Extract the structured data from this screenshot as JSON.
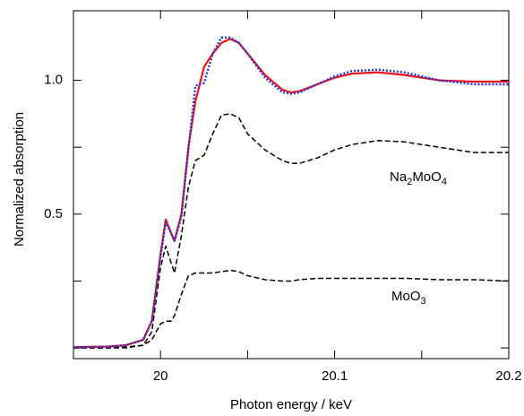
{
  "chart_data": {
    "type": "line",
    "xlabel": "Photon energy / keV",
    "ylabel": "Normalized absorption",
    "x": [
      19.95,
      19.97,
      19.98,
      19.99,
      19.995,
      20,
      20.003,
      20.006,
      20.008,
      20.012,
      20.016,
      20.02,
      20.025,
      20.03,
      20.035,
      20.04,
      20.045,
      20.05,
      20.06,
      20.07,
      20.075,
      20.08,
      20.09,
      20.1,
      20.11,
      20.125,
      20.14,
      20.16,
      20.18,
      20.2
    ],
    "series": [
      {
        "color": "#e8141c",
        "dash": "solid",
        "values": [
          0.003,
          0.005,
          0.01,
          0.03,
          0.1,
          0.35,
          0.48,
          0.43,
          0.4,
          0.5,
          0.75,
          0.92,
          1.05,
          1.1,
          1.14,
          1.155,
          1.14,
          1.1,
          1.02,
          0.965,
          0.955,
          0.96,
          0.985,
          1.01,
          1.025,
          1.03,
          1.02,
          1.0,
          0.995,
          0.995
        ]
      },
      {
        "color": "#2233dd",
        "dash": "dotted",
        "values": [
          0.003,
          0.005,
          0.01,
          0.03,
          0.1,
          0.34,
          0.47,
          0.43,
          0.4,
          0.49,
          0.74,
          0.98,
          0.99,
          1.1,
          1.16,
          1.16,
          1.14,
          1.1,
          1.01,
          0.955,
          0.95,
          0.955,
          0.985,
          1.015,
          1.035,
          1.04,
          1.03,
          1.0,
          0.985,
          0.985
        ]
      },
      {
        "color": "#000000",
        "dash": "dashed",
        "values": [
          0,
          0,
          0.003,
          0.01,
          0.06,
          0.3,
          0.38,
          0.32,
          0.28,
          0.42,
          0.6,
          0.7,
          0.72,
          0.8,
          0.87,
          0.875,
          0.86,
          0.8,
          0.74,
          0.7,
          0.69,
          0.69,
          0.71,
          0.74,
          0.76,
          0.775,
          0.77,
          0.75,
          0.73,
          0.73
        ]
      },
      {
        "color": "#000000",
        "dash": "dashed",
        "values": [
          0,
          0,
          0,
          0.01,
          0.03,
          0.09,
          0.1,
          0.1,
          0.12,
          0.2,
          0.27,
          0.28,
          0.28,
          0.28,
          0.285,
          0.29,
          0.285,
          0.27,
          0.255,
          0.25,
          0.25,
          0.255,
          0.26,
          0.26,
          0.26,
          0.26,
          0.26,
          0.255,
          0.255,
          0.25
        ]
      }
    ],
    "annotations": [
      [
        "Na",
        "2",
        "MoO",
        "4"
      ],
      [
        "MoO",
        "3"
      ]
    ],
    "xlim": [
      19.95,
      20.2
    ],
    "xticks": [
      20,
      20.1,
      20.2
    ],
    "x_minor_ticks": [
      20.05,
      20.15
    ],
    "ylim": [
      -0.04,
      1.26
    ],
    "yticks": [
      {
        "value": 1,
        "label": "1.0"
      },
      0.5
    ],
    "y_minor_ticks": [
      0,
      0.25,
      0.75
    ],
    "grid": false
  }
}
